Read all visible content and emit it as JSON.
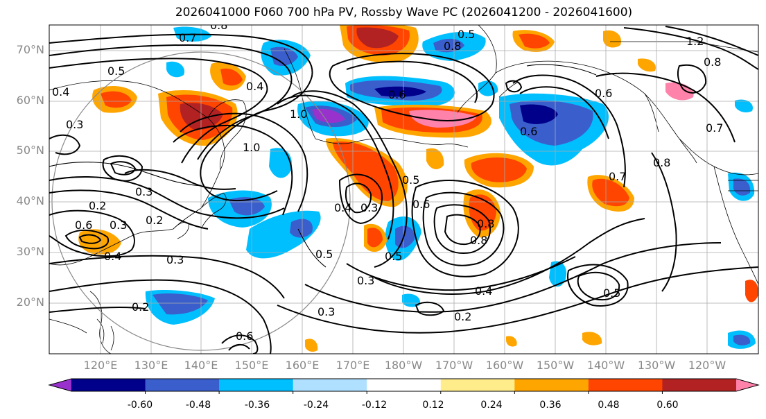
{
  "title": "2026041000 F060 700 hPa PV, Rossby Wave PC (2026041200 - 2026041600)",
  "latitude_labels": [
    "70°N",
    "60°N",
    "50°N",
    "40°N",
    "30°N",
    "20°N"
  ],
  "longitude_labels": [
    "120°E",
    "130°E",
    "140°E",
    "150°E",
    "160°E",
    "170°E",
    "180°W",
    "170°W",
    "160°W",
    "150°W",
    "140°W",
    "130°W",
    "120°W"
  ],
  "colorbar": {
    "ticks": [
      "-0.60",
      "-0.48",
      "-0.36",
      "-0.24",
      "-0.12",
      "0.12",
      "0.24",
      "0.36",
      "0.48",
      "0.60"
    ],
    "colors": [
      "#9932cc",
      "#00008b",
      "#3a5fcd",
      "#00bfff",
      "#b0e0ff",
      "#ffffff",
      "#ffec8b",
      "#ffa500",
      "#ff4500",
      "#b22222",
      "#ff82ab"
    ]
  },
  "contour_labels": [
    "0.7",
    "0.8",
    "0.5",
    "0.4",
    "0.4",
    "0.3",
    "1.0",
    "0.6",
    "0.8",
    "0.5",
    "0.6",
    "1.2",
    "0.8",
    "0.7",
    "0.6",
    "1.0",
    "0.3",
    "0.2",
    "0.3",
    "0.2",
    "0.6",
    "0.4",
    "0.3",
    "0.2",
    "0.5",
    "0.4",
    "0.3",
    "0.5",
    "0.6",
    "0.5",
    "0.8",
    "0.8",
    "0.7",
    "0.8",
    "0.5",
    "0.4",
    "0.2",
    "0.3",
    "0.3",
    "0.6"
  ]
}
